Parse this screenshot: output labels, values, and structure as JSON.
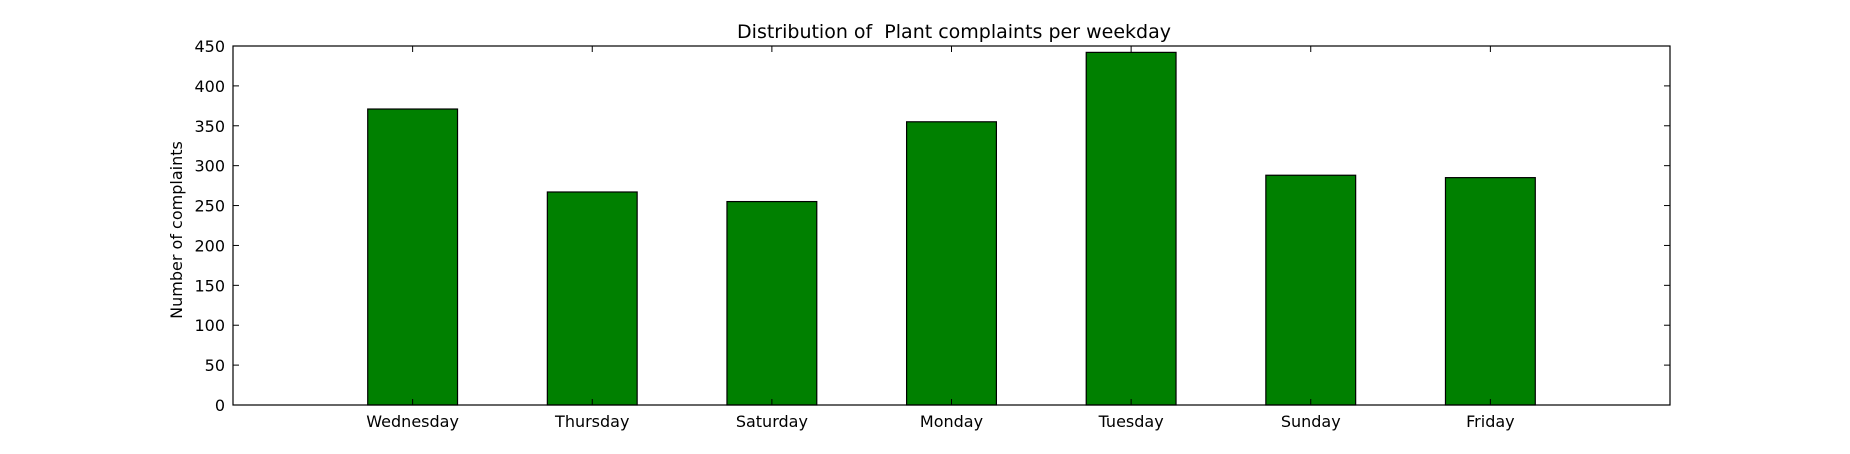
{
  "chart_data": {
    "type": "bar",
    "title": "Distribution of  Plant complaints per weekday",
    "xlabel": "",
    "ylabel": "Number of complaints",
    "categories": [
      "Wednesday",
      "Thursday",
      "Saturday",
      "Monday",
      "Tuesday",
      "Sunday",
      "Friday"
    ],
    "values": [
      371,
      267,
      255,
      355,
      442,
      288,
      285
    ],
    "ylim": [
      0,
      450
    ],
    "yticks": [
      0,
      50,
      100,
      150,
      200,
      250,
      300,
      350,
      400,
      450
    ],
    "bar_color": "#008000",
    "edge_color": "#000000",
    "grid": false,
    "legend": "none"
  }
}
